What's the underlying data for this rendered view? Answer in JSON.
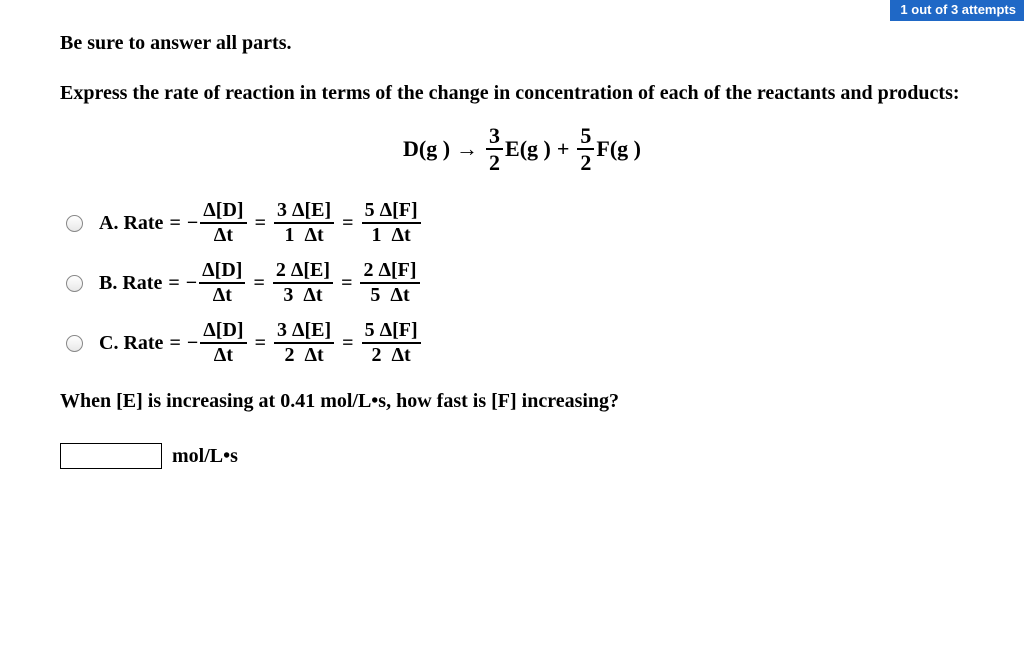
{
  "header": {
    "badge": "1 out of 3 attempts"
  },
  "instruction": "Be sure to answer all parts.",
  "prompt": "Express the rate of reaction in terms of the change in concentration of each of the reactants and products:",
  "reaction": {
    "lhs": "D(g )",
    "arrow": "→",
    "coef1": {
      "num": "3",
      "den": "2"
    },
    "p1": "E(g )",
    "plus": "+",
    "coef2": {
      "num": "5",
      "den": "2"
    },
    "p2": "F(g )"
  },
  "choices": [
    {
      "label": "A.",
      "t1": {
        "sign": "−",
        "num": "Δ[D]",
        "den": "Δt"
      },
      "t2": {
        "cn": "3",
        "cd": "1",
        "num": "Δ[E]",
        "den": "Δt"
      },
      "t3": {
        "cn": "5",
        "cd": "1",
        "num": "Δ[F]",
        "den": "Δt"
      }
    },
    {
      "label": "B.",
      "t1": {
        "sign": "−",
        "num": "Δ[D]",
        "den": "Δt"
      },
      "t2": {
        "cn": "2",
        "cd": "3",
        "num": "Δ[E]",
        "den": "Δt"
      },
      "t3": {
        "cn": "2",
        "cd": "5",
        "num": "Δ[F]",
        "den": "Δt"
      }
    },
    {
      "label": "C.",
      "t1": {
        "sign": "−",
        "num": "Δ[D]",
        "den": "Δt"
      },
      "t2": {
        "cn": "3",
        "cd": "2",
        "num": "Δ[E]",
        "den": "Δt"
      },
      "t3": {
        "cn": "5",
        "cd": "2",
        "num": "Δ[F]",
        "den": "Δt"
      }
    }
  ],
  "rate_label": "Rate",
  "equals": "=",
  "followup": "When [E] is increasing at 0.41 mol/L•s, how fast is [F] increasing?",
  "answer_unit": "mol/L•s",
  "colors": {
    "badge_bg": "#1f68c6",
    "badge_fg": "#ffffff",
    "page_bg": "#ffffff",
    "text": "#000000",
    "radio_border": "#888888"
  },
  "typography": {
    "family": "Times New Roman",
    "base_size_pt": 20,
    "weight": "bold"
  }
}
